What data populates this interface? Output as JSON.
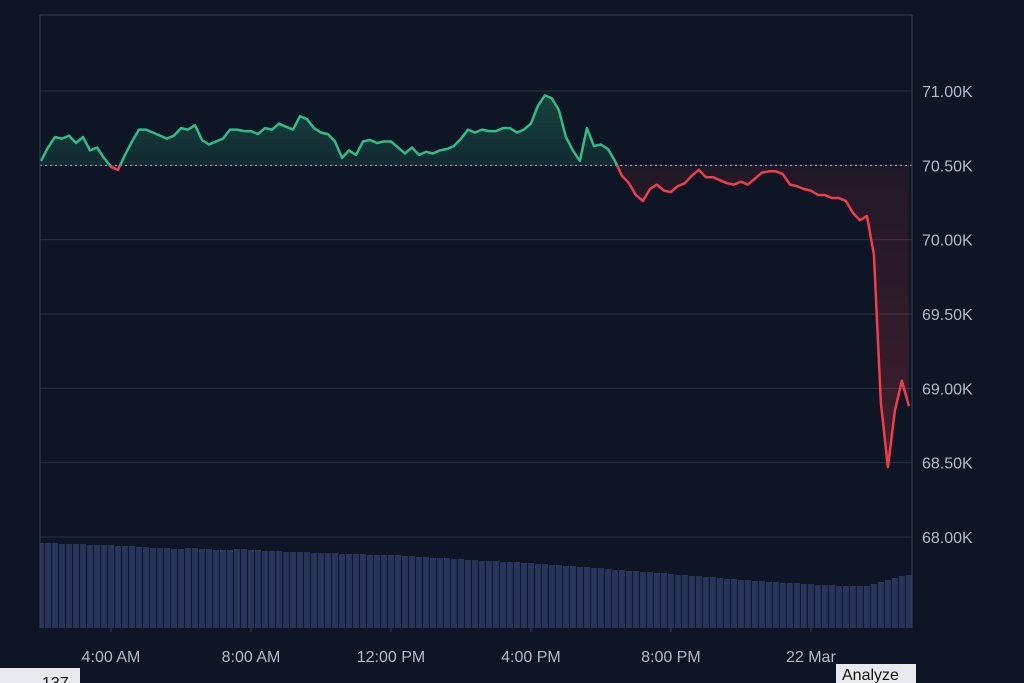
{
  "chart_data": {
    "type": "line",
    "xlim": [
      1.97,
      26.89
    ],
    "ylim": [
      67388,
      71511
    ],
    "y2lim": [
      0,
      613
    ],
    "baseline": 70500,
    "grid": true,
    "xticks": [
      {
        "value": 4,
        "label": "4:00 AM"
      },
      {
        "value": 8,
        "label": "8:00 AM"
      },
      {
        "value": 12,
        "label": "12:00 PM"
      },
      {
        "value": 16,
        "label": "4:00 PM"
      },
      {
        "value": 20,
        "label": "8:00 PM"
      },
      {
        "value": 24,
        "label": "22 Mar"
      }
    ],
    "yticks": [
      {
        "value": 68000,
        "label": "68.00K"
      },
      {
        "value": 68500,
        "label": "68.50K"
      },
      {
        "value": 69000,
        "label": "69.00K"
      },
      {
        "value": 69500,
        "label": "69.50K"
      },
      {
        "value": 70000,
        "label": "70.00K"
      },
      {
        "value": 70500,
        "label": "70.50K"
      },
      {
        "value": 71000,
        "label": "71.00K"
      }
    ],
    "x": [
      2,
      2.2,
      2.4,
      2.6,
      2.8,
      3,
      3.2,
      3.4,
      3.6,
      3.8,
      4,
      4.2,
      4.4,
      4.6,
      4.8,
      5,
      5.2,
      5.4,
      5.6,
      5.8,
      6,
      6.2,
      6.4,
      6.6,
      6.8,
      7,
      7.2,
      7.4,
      7.6,
      7.8,
      8,
      8.2,
      8.4,
      8.6,
      8.8,
      9,
      9.2,
      9.4,
      9.6,
      9.8,
      10,
      10.2,
      10.4,
      10.6,
      10.8,
      11,
      11.2,
      11.4,
      11.6,
      11.8,
      12,
      12.2,
      12.4,
      12.6,
      12.8,
      13,
      13.2,
      13.4,
      13.6,
      13.8,
      14,
      14.2,
      14.4,
      14.6,
      14.8,
      15,
      15.2,
      15.4,
      15.6,
      15.8,
      16,
      16.2,
      16.4,
      16.6,
      16.8,
      17,
      17.2,
      17.4,
      17.6,
      17.8,
      18,
      18.2,
      18.4,
      18.6,
      18.8,
      19,
      19.2,
      19.4,
      19.6,
      19.8,
      20,
      20.2,
      20.4,
      20.6,
      20.8,
      21,
      21.2,
      21.4,
      21.6,
      21.8,
      22,
      22.2,
      22.4,
      22.6,
      22.8,
      23,
      23.2,
      23.4,
      23.6,
      23.8,
      24,
      24.2,
      24.4,
      24.6,
      24.8,
      25,
      25.2,
      25.4,
      25.6,
      25.8,
      26,
      26.2,
      26.4,
      26.6,
      26.8
    ],
    "series": [
      {
        "color_up": "#2ebd85",
        "color_down": "#ef3e4a",
        "values": [
          70530,
          70620,
          70690,
          70680,
          70700,
          70650,
          70690,
          70600,
          70620,
          70550,
          70490,
          70470,
          70570,
          70660,
          70740,
          70740,
          70720,
          70700,
          70680,
          70700,
          70750,
          70740,
          70770,
          70670,
          70640,
          70660,
          70680,
          70740,
          70740,
          70730,
          70730,
          70710,
          70750,
          70740,
          70780,
          70760,
          70740,
          70830,
          70810,
          70750,
          70720,
          70710,
          70660,
          70550,
          70600,
          70570,
          70660,
          70670,
          70650,
          70660,
          70660,
          70620,
          70580,
          70620,
          70570,
          70590,
          70580,
          70600,
          70610,
          70630,
          70680,
          70740,
          70720,
          70740,
          70730,
          70730,
          70750,
          70750,
          70720,
          70740,
          70780,
          70900,
          70970,
          70950,
          70870,
          70690,
          70600,
          70530,
          70750,
          70630,
          70640,
          70610,
          70530,
          70430,
          70380,
          70300,
          70260,
          70340,
          70370,
          70330,
          70320,
          70360,
          70380,
          70430,
          70470,
          70420,
          70420,
          70400,
          70380,
          70370,
          70390,
          70370,
          70410,
          70450,
          70460,
          70460,
          70440,
          70370,
          70360,
          70340,
          70330,
          70300,
          70300,
          70280,
          70280,
          70260,
          70180,
          70130,
          70160,
          69900,
          68900,
          68470,
          68850,
          69050,
          68880
        ]
      },
      {
        "type": "bar",
        "axis": "y2",
        "color": "#28345a",
        "values": [
          85,
          85,
          85,
          84,
          84,
          84,
          84,
          83,
          83,
          83,
          83,
          82,
          82,
          82,
          81,
          81,
          80,
          80,
          80,
          79,
          79,
          80,
          80,
          79,
          79,
          78,
          78,
          78,
          79,
          79,
          78,
          78,
          77,
          77,
          77,
          76,
          76,
          76,
          76,
          75,
          75,
          75,
          75,
          74,
          74,
          74,
          74,
          73,
          73,
          73,
          73,
          73,
          72,
          72,
          71,
          71,
          70,
          70,
          70,
          69,
          69,
          68,
          68,
          67,
          67,
          67,
          66,
          66,
          66,
          65,
          65,
          64,
          64,
          63,
          63,
          62,
          62,
          61,
          61,
          60,
          60,
          59,
          58,
          58,
          57,
          57,
          56,
          56,
          55,
          55,
          54,
          53,
          53,
          52,
          52,
          51,
          51,
          50,
          49,
          49,
          48,
          48,
          47,
          47,
          46,
          46,
          45,
          45,
          45,
          44,
          44,
          43,
          43,
          43,
          42,
          42,
          42,
          42,
          42,
          44,
          46,
          48,
          50,
          52,
          53
        ]
      }
    ]
  },
  "footer": {
    "counter": "137",
    "button": "Analyze"
  }
}
